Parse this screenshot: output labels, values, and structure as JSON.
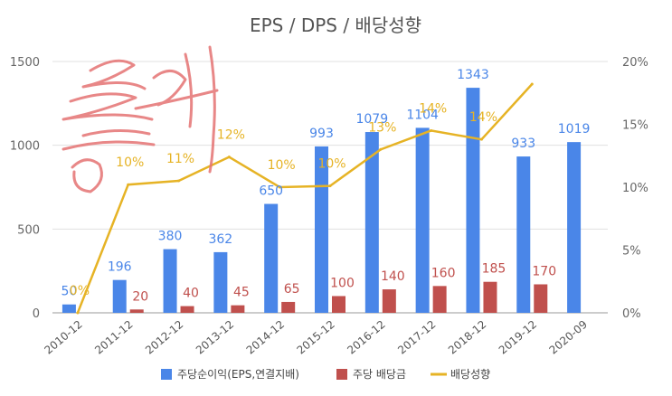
{
  "chart_data": {
    "type": "bar",
    "title": "EPS / DPS / 배당성향",
    "categories": [
      "2010-12",
      "2011-12",
      "2012-12",
      "2013-12",
      "2014-12",
      "2015-12",
      "2016-12",
      "2017-12",
      "2018-12",
      "2019-12",
      "2020-09"
    ],
    "series": [
      {
        "name": "주당순이익(EPS,연결지배)",
        "type": "bar",
        "axis": "left",
        "color": "#4a86e8",
        "values": [
          50,
          196,
          380,
          362,
          650,
          993,
          1079,
          1104,
          1343,
          933,
          1019
        ],
        "labels": [
          "50",
          "196",
          "380",
          "362",
          "650",
          "993",
          "1079",
          "1104",
          "1343",
          "933",
          "1019"
        ]
      },
      {
        "name": "주당 배당금",
        "type": "bar",
        "axis": "left",
        "color": "#c0504d",
        "values": [
          0,
          20,
          40,
          45,
          65,
          100,
          140,
          160,
          185,
          170,
          null
        ],
        "labels": [
          "",
          "20",
          "40",
          "45",
          "65",
          "100",
          "140",
          "160",
          "185",
          "170",
          ""
        ]
      },
      {
        "name": "배당성향",
        "type": "line",
        "axis": "right",
        "color": "#e6b325",
        "values": [
          0,
          10.2,
          10.5,
          12.4,
          10,
          10.1,
          13,
          14.5,
          13.8,
          18.2,
          null
        ],
        "labels": [
          "0%",
          "10%",
          "11%",
          "12%",
          "10%",
          "10%",
          "13%",
          "14%",
          "14%",
          "",
          ""
        ]
      }
    ],
    "ylim_left": [
      0,
      1500
    ],
    "yticks_left": [
      "0",
      "500",
      "1000",
      "1500"
    ],
    "ylim_right": [
      0,
      20
    ],
    "yticks_right": [
      "0%",
      "5%",
      "10%",
      "15%",
      "20%"
    ],
    "grid": true,
    "legend_position": "bottom"
  }
}
